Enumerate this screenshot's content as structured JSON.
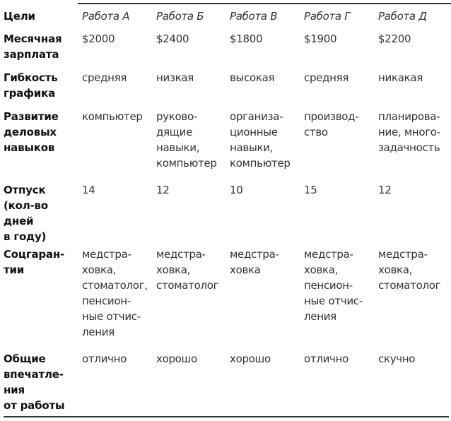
{
  "table": {
    "corner": "Цели",
    "columns": [
      "Работа А",
      "Работа Б",
      "Работа В",
      "Работа Г",
      "Работа Д"
    ],
    "rows": [
      {
        "label": "Месячная\nзарплата",
        "cells": [
          "$2000",
          "$2400",
          "$1800",
          "$1900",
          "$2200"
        ]
      },
      {
        "label": "Гибкость\nграфика",
        "cells": [
          "средняя",
          "низкая",
          "высокая",
          "средняя",
          "никакая"
        ]
      },
      {
        "label": "Развитие\nделовых\nнавыков",
        "cells": [
          "компьютер",
          "руково-\nдящие\nнавыки,\nкомпьютер",
          "организа-\nционные\nнавыки,\nкомпьютер",
          "производ-\nство",
          "планирова-\nние, много-\nзадачность"
        ]
      },
      {
        "label": "Отпуск\n(кол-во\nдней\nв году)",
        "cells": [
          "14",
          "12",
          "10",
          "15",
          "12"
        ]
      },
      {
        "label": "Соцгаран-\nтии",
        "cells": [
          "медстра-\nховка,\nстоматолог,\nпенсион-\nные отчис-\nления",
          "медстра-\nховка,\nстоматолог",
          "медстра-\nховка",
          "медстра-\nховка,\nпенсион-\nные отчис-\nления",
          "медстра-\nховка,\nстоматолог"
        ]
      },
      {
        "label": "Общие\nвпечатле-\nния\nот работы",
        "cells": [
          "отлично",
          "хорошо",
          "хорошо",
          "отлично",
          "скучно"
        ]
      }
    ]
  }
}
